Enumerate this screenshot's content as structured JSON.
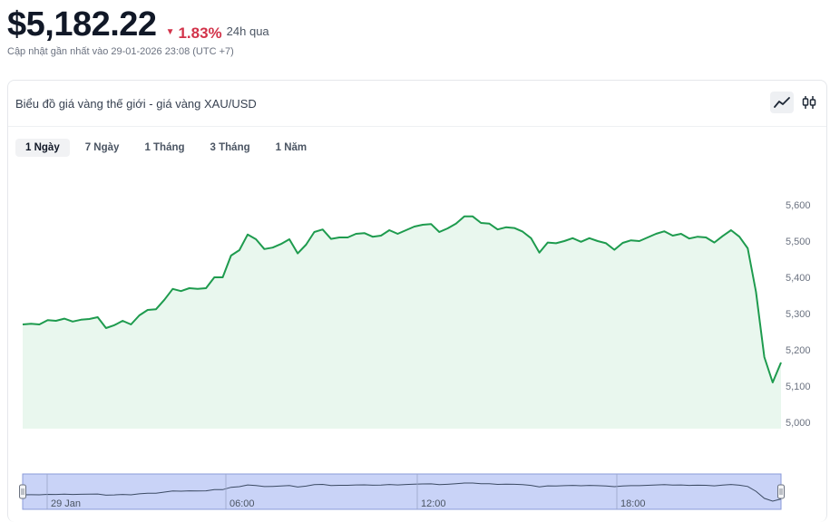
{
  "header": {
    "price": "$5,182.22",
    "change": "1.83%",
    "period": "24h qua",
    "updated": "Cập nhật gần nhất vào 29-01-2026 23:08 (UTC +7)"
  },
  "card": {
    "title": "Biểu đồ giá vàng thế giới - giá vàng XAU/USD",
    "tabs": [
      "1 Ngày",
      "7 Ngày",
      "1 Tháng",
      "3 Tháng",
      "1 Năm"
    ],
    "active_tab": "1 Ngày",
    "view_icons": [
      "line-chart-icon",
      "candlestick-icon"
    ]
  },
  "colors": {
    "line": "#1e9b4e",
    "area": "#e9f7ee",
    "down": "#d2334a",
    "navigator_fill": "#c9d3f7"
  },
  "chart_data": {
    "type": "area",
    "title": "",
    "xlabel": "",
    "ylabel": "",
    "ylim": [
      5000,
      5600
    ],
    "y_ticks": [
      5000,
      5100,
      5200,
      5300,
      5400,
      5500,
      5600
    ],
    "y_tick_labels": [
      "5,000",
      "5,100",
      "5,200",
      "5,300",
      "5,400",
      "5,500",
      "5,600"
    ],
    "navigator_labels": [
      "29 Jan",
      "06:00",
      "12:00",
      "18:00"
    ],
    "series": [
      {
        "values": [
          5270,
          5272,
          5270,
          5282,
          5280,
          5286,
          5278,
          5283,
          5285,
          5290,
          5260,
          5268,
          5280,
          5270,
          5295,
          5310,
          5312,
          5338,
          5368,
          5362,
          5370,
          5368,
          5370,
          5400,
          5400,
          5460,
          5475,
          5518,
          5505,
          5478,
          5482,
          5492,
          5505,
          5466,
          5490,
          5525,
          5532,
          5506,
          5510,
          5510,
          5520,
          5522,
          5512,
          5515,
          5530,
          5520,
          5530,
          5540,
          5545,
          5547,
          5525,
          5535,
          5548,
          5568,
          5568,
          5550,
          5548,
          5532,
          5538,
          5536,
          5526,
          5508,
          5468,
          5496,
          5494,
          5500,
          5508,
          5498,
          5508,
          5500,
          5494,
          5476,
          5495,
          5502,
          5500,
          5510,
          5520,
          5527,
          5515,
          5520,
          5507,
          5512,
          5510,
          5496,
          5514,
          5530,
          5512,
          5480,
          5360,
          5180,
          5110,
          5165
        ]
      }
    ]
  }
}
